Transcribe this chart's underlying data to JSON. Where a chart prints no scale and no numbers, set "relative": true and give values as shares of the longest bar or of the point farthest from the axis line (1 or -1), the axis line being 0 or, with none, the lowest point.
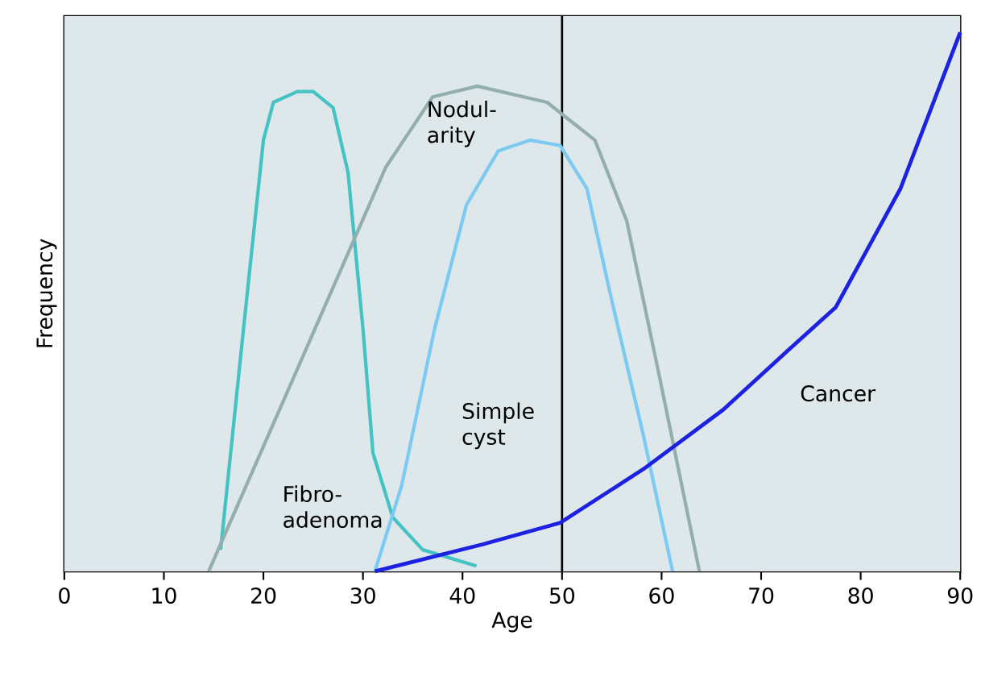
{
  "chart_data": {
    "type": "line",
    "xlabel": "Age",
    "ylabel": "Frequency",
    "relative": true,
    "xlim": [
      0,
      90
    ],
    "xticks": [
      0,
      10,
      20,
      30,
      40,
      50,
      60,
      70,
      80,
      90
    ],
    "legend": false,
    "marker": "none",
    "line_style": "solid",
    "ref_lines": [
      {
        "axis": "x",
        "value": 50,
        "color": "#000000"
      }
    ],
    "series": [
      {
        "name": "Fibro-adenoma",
        "color": "#45c2c4",
        "x": [
          15.7,
          18,
          20,
          21,
          23.4,
          25,
          27,
          28.5,
          30,
          31,
          33,
          36,
          41.4
        ],
        "values": [
          0.04,
          0.45,
          0.8,
          0.87,
          0.89,
          0.89,
          0.86,
          0.74,
          0.45,
          0.22,
          0.1,
          0.04,
          0.01
        ]
      },
      {
        "name": "Nodul-arity",
        "color": "#94adad",
        "x": [
          14.5,
          32.3,
          37,
          41.5,
          48.5,
          53.3,
          56.5,
          59.8,
          63.8
        ],
        "values": [
          0,
          0.75,
          0.88,
          0.9,
          0.87,
          0.8,
          0.65,
          0.36,
          0
        ]
      },
      {
        "name": "Simple cyst",
        "color": "#7ccaf2",
        "x": [
          31.2,
          33.9,
          37.2,
          40.4,
          43.6,
          46.8,
          49.8,
          52.5,
          54.9,
          58.2,
          61.1
        ],
        "values": [
          0,
          0.16,
          0.45,
          0.68,
          0.78,
          0.8,
          0.79,
          0.71,
          0.51,
          0.25,
          0
        ]
      },
      {
        "name": "Cancer",
        "color": "#1c22e0",
        "x": [
          31.2,
          42,
          49.8,
          58.2,
          66.2,
          72.7,
          77.5,
          84,
          90
        ],
        "values": [
          0,
          0.05,
          0.09,
          0.19,
          0.3,
          0.41,
          0.49,
          0.71,
          1
        ]
      }
    ]
  }
}
